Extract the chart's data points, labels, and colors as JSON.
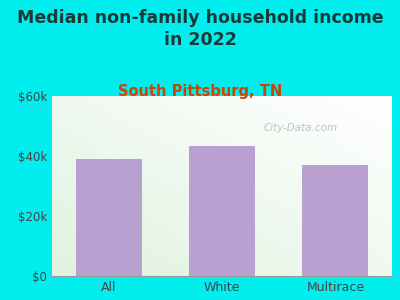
{
  "title": "Median non-family household income\nin 2022",
  "subtitle": "South Pittsburg, TN",
  "categories": [
    "All",
    "White",
    "Multirace"
  ],
  "values": [
    39000,
    43500,
    37000
  ],
  "bar_color": "#b8a0d0",
  "background_color": "#00EEEE",
  "title_color": "#1a3a3a",
  "subtitle_color": "#cc4400",
  "tick_color": "#444444",
  "ylim": [
    0,
    60000
  ],
  "yticks": [
    0,
    20000,
    40000,
    60000
  ],
  "ytick_labels": [
    "$0",
    "$20k",
    "$40k",
    "$60k"
  ],
  "watermark": "City-Data.com",
  "title_fontsize": 12.5,
  "subtitle_fontsize": 10.5,
  "bar_width": 0.58
}
